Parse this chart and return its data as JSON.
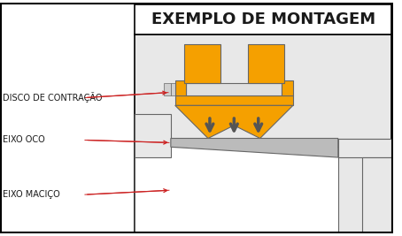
{
  "title": "EXEMPLO DE MONTAGEM",
  "title_fontsize": 13,
  "labels": [
    "DISCO DE CONTRAÇÃO",
    "EIXO OCO",
    "EIXO MACIÇO"
  ],
  "label_fontsize": 7.0,
  "orange": "#F5A000",
  "gray_bg": "#E8E8E8",
  "gray_light": "#DCDCDC",
  "gray_mid": "#BBBBBB",
  "gray_dark": "#999999",
  "white": "#FFFFFF",
  "outline": "#666666",
  "text_color": "#1A1A1A",
  "arrow_color": "#CC2222",
  "down_arrow_color": "#555555"
}
